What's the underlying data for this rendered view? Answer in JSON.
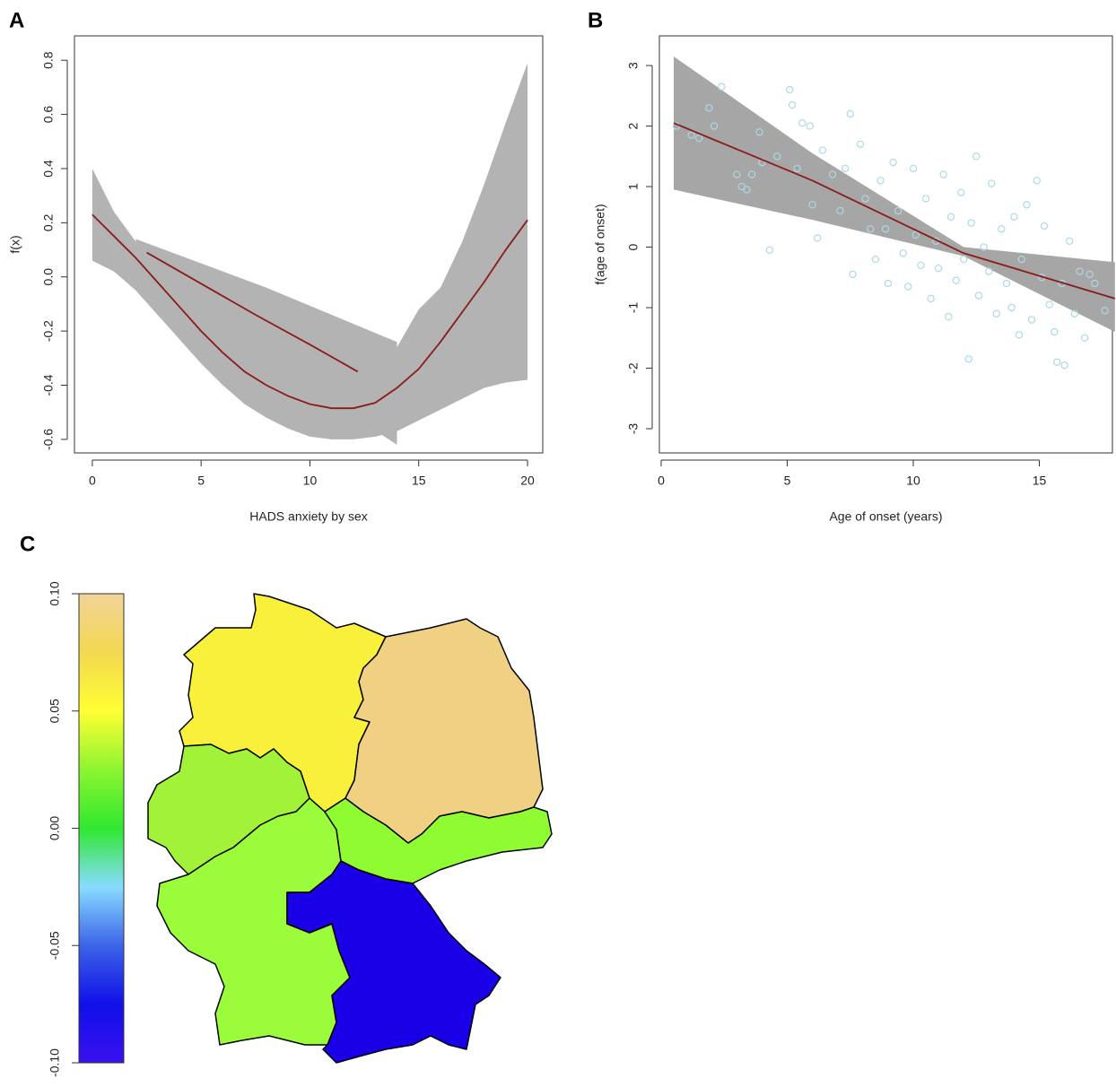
{
  "chart_data": [
    {
      "type": "line",
      "panel": "A",
      "xlabel": "HADS anxiety by sex",
      "ylabel": "f(x)",
      "xlim": [
        -0.82,
        20.7
      ],
      "ylim": [
        -0.65,
        0.89
      ],
      "xticks": [
        0,
        5,
        10,
        15,
        20
      ],
      "yticks": [
        -0.6,
        -0.4,
        -0.2,
        {
          "value": 0,
          "label": "0.0"
        },
        0.2,
        0.4,
        0.6,
        0.8
      ],
      "band_color": "#b3b3b3",
      "series": [
        {
          "color": "#8b1a1a",
          "x": [
            0,
            1,
            2,
            3,
            4,
            5,
            6,
            7,
            8,
            9,
            10,
            11,
            12,
            13,
            14,
            15,
            16,
            17,
            18,
            19,
            20
          ],
          "values": [
            0.23,
            0.15,
            0.07,
            -0.02,
            -0.11,
            -0.2,
            -0.28,
            -0.35,
            -0.4,
            -0.44,
            -0.47,
            -0.485,
            -0.485,
            -0.465,
            -0.41,
            -0.34,
            -0.24,
            -0.13,
            -0.02,
            0.1,
            0.21
          ],
          "band": {
            "x": [
              0,
              1,
              2,
              3,
              4,
              5,
              6,
              7,
              8,
              9,
              10,
              11,
              12,
              13,
              14,
              15,
              16,
              17,
              18,
              19,
              20
            ],
            "lower": [
              0.06,
              0.02,
              -0.05,
              -0.14,
              -0.23,
              -0.32,
              -0.4,
              -0.47,
              -0.52,
              -0.56,
              -0.59,
              -0.6,
              -0.6,
              -0.59,
              -0.57,
              -0.53,
              -0.49,
              -0.45,
              -0.41,
              -0.39,
              -0.38
            ],
            "upper": [
              0.4,
              0.24,
              0.13,
              0.06,
              -0.02,
              -0.09,
              -0.15,
              -0.22,
              -0.28,
              -0.32,
              -0.35,
              -0.37,
              -0.37,
              -0.35,
              -0.26,
              -0.12,
              -0.04,
              0.13,
              0.34,
              0.57,
              0.79
            ]
          }
        },
        {
          "color": "#8b1a1a",
          "x": [
            2.5,
            5,
            7.5,
            10,
            12.2
          ],
          "values": [
            0.09,
            -0.025,
            -0.14,
            -0.25,
            -0.35
          ],
          "band": {
            "x": [
              2,
              5,
              8,
              11,
              14
            ],
            "lower": [
              0.1,
              -0.1,
              -0.3,
              -0.46,
              -0.62
            ],
            "upper": [
              0.14,
              0.05,
              -0.04,
              -0.14,
              -0.24
            ]
          }
        }
      ]
    },
    {
      "type": "scatter",
      "panel": "B",
      "xlabel": "Age of onset (years)",
      "ylabel": "f(age of onset)",
      "xlim": [
        -0.07,
        17.9
      ],
      "ylim": [
        -3.4,
        3.49
      ],
      "xticks": [
        0,
        5,
        10,
        15
      ],
      "yticks": [
        -3,
        -2,
        -1,
        0,
        1,
        2,
        3
      ],
      "point_color": "#add8e6",
      "x": [
        0.6,
        1.2,
        1.5,
        1.9,
        2.1,
        2.4,
        3,
        3.2,
        3.4,
        3.6,
        3.9,
        4,
        4.3,
        4.6,
        5.1,
        5.2,
        5.4,
        5.6,
        5.9,
        6,
        6.2,
        6.4,
        6.8,
        7.1,
        7.3,
        7.5,
        7.6,
        7.9,
        8.1,
        8.3,
        8.5,
        8.7,
        8.9,
        9,
        9.2,
        9.4,
        9.6,
        9.8,
        10,
        10.1,
        10.3,
        10.5,
        10.7,
        10.9,
        11,
        11.2,
        11.4,
        11.5,
        11.7,
        11.9,
        12,
        12.2,
        12.3,
        12.5,
        12.6,
        12.8,
        13,
        13.1,
        13.3,
        13.5,
        13.7,
        13.9,
        14,
        14.2,
        14.3,
        14.5,
        14.7,
        14.9,
        15.1,
        15.2,
        15.4,
        15.6,
        15.7,
        15.9,
        16,
        16.2,
        16.4,
        16.6,
        16.8,
        17,
        17.2,
        17.6
      ],
      "values": [
        2,
        1.85,
        1.8,
        2.3,
        2,
        2.65,
        1.2,
        1,
        0.95,
        1.2,
        1.9,
        1.4,
        -0.05,
        1.5,
        2.6,
        2.35,
        1.3,
        2.05,
        2,
        0.7,
        0.15,
        1.6,
        1.2,
        0.6,
        1.3,
        2.2,
        -0.45,
        1.7,
        0.8,
        0.3,
        -0.2,
        1.1,
        0.3,
        -0.6,
        1.4,
        0.6,
        -0.1,
        -0.65,
        1.3,
        0.2,
        -0.3,
        0.8,
        -0.85,
        0.1,
        -0.35,
        1.2,
        -1.15,
        0.5,
        -0.55,
        0.9,
        -0.2,
        -1.85,
        0.4,
        1.5,
        -0.8,
        0,
        -0.4,
        1.05,
        -1.1,
        0.3,
        -0.6,
        -1,
        0.5,
        -1.45,
        -0.2,
        0.7,
        -1.2,
        1.1,
        -0.5,
        0.35,
        -0.95,
        -1.4,
        -1.9,
        -0.6,
        -1.95,
        0.1,
        -1.1,
        -0.4,
        -1.5,
        -0.45,
        -0.6,
        -1.05
      ],
      "fit": {
        "color": "#8b1a1a",
        "band_color": "#a6a6a6",
        "x": [
          0.5,
          6,
          12,
          18
        ],
        "values": [
          2.05,
          1.1,
          -0.1,
          -0.85
        ],
        "lower": [
          0.95,
          0.45,
          -0.15,
          -1.4
        ],
        "upper": [
          3.15,
          1.55,
          0,
          -0.25
        ]
      }
    },
    {
      "type": "map",
      "panel": "C",
      "ylim": [
        -0.1,
        0.1
      ],
      "yticks": [
        {
          "value": -0.1,
          "label": "-0.10"
        },
        -0.05,
        {
          "value": 0,
          "label": "0.00"
        },
        0.05,
        {
          "value": 0.1,
          "label": "0.10"
        }
      ],
      "colorscale": [
        "#3a10f0",
        "#1010e8",
        "#3c64e8",
        "#88dcff",
        "#30e830",
        "#8cf530",
        "#ffff33",
        "#f2d850",
        "#f2d49a"
      ],
      "values": [
        0.04,
        0.085,
        0.015,
        0.01,
        0,
        -0.08
      ],
      "colors": [
        "#f8f03a",
        "#f0d184",
        "#a2f23a",
        "#9afc3a",
        "#8efc30",
        "#1a00e6"
      ]
    }
  ]
}
